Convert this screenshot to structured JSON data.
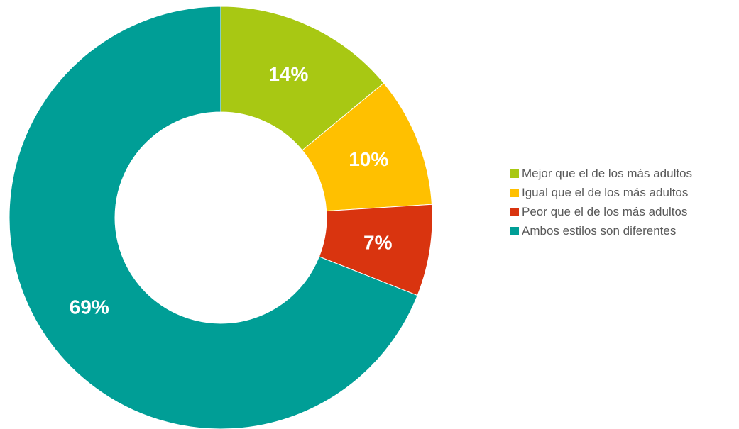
{
  "chart_data": {
    "type": "pie",
    "style": "donut",
    "title": "",
    "categories": [
      "Mejor que el de los más adultos",
      "Igual que el de los más adultos",
      "Peor que el de los más adultos",
      "Ambos estilos son diferentes"
    ],
    "values": [
      14,
      10,
      7,
      69
    ],
    "labels": [
      "14%",
      "10%",
      "7%",
      "69%"
    ],
    "colors": [
      "#a8c813",
      "#ffc000",
      "#d9340f",
      "#009e96"
    ],
    "legend_position": "right"
  }
}
